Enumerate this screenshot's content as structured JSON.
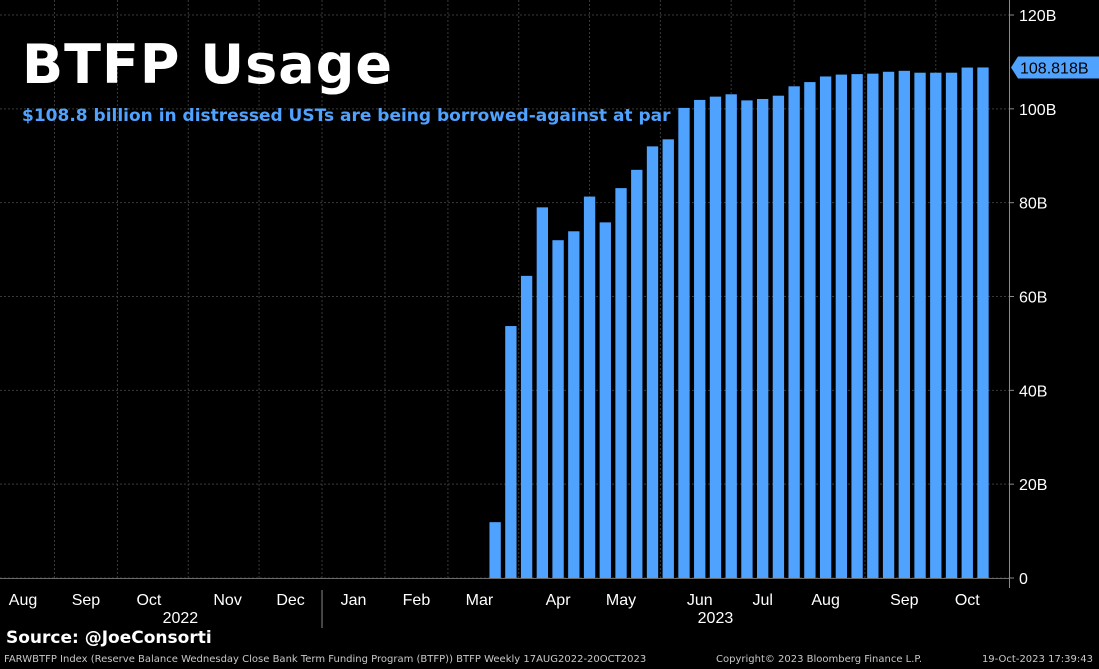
{
  "title": "BTFP Usage",
  "subtitle": "$108.8 billion in distressed USTs are being borrowed-against at par",
  "source": "Source:  @JoeConsorti",
  "footer": {
    "left": "FARWBTFP Index (Reserve Balance Wednesday Close Bank Term Funding Program (BTFP)) BTFP  Weekly 17AUG2022-20OCT2023",
    "center": "Copyright© 2023 Bloomberg Finance L.P.",
    "right": "19-Oct-2023 17:39:43"
  },
  "colors": {
    "background": "#000000",
    "bar": "#4fa3ff",
    "grid": "#3a3a3a",
    "axis_text": "#ffffff",
    "last_value_badge": "#4fa3ff"
  },
  "chart_data": {
    "type": "bar",
    "series": [
      {
        "values": [
          0,
          0,
          0,
          0,
          0,
          0,
          0,
          0,
          0,
          0,
          0,
          0,
          0,
          0,
          0,
          0,
          0,
          0,
          0,
          0,
          0,
          0,
          0,
          0,
          0,
          0,
          0,
          0,
          0,
          0,
          11.9,
          53.7,
          64.4,
          79.0,
          72.0,
          73.9,
          81.3,
          75.8,
          83.1,
          87.0,
          92.0,
          93.5,
          100.2,
          101.9,
          102.6,
          103.1,
          101.8,
          102.1,
          102.8,
          104.8,
          105.7,
          106.9,
          107.3,
          107.4,
          107.5,
          107.9,
          108.1,
          107.7,
          107.7,
          107.7,
          108.8,
          108.818
        ]
      }
    ],
    "x_start": "2022-08-17",
    "x_interval": "weekly",
    "x_end": "2023-10-18",
    "xtick_labels": [
      {
        "label": "Aug",
        "date": "2022-08-17"
      },
      {
        "label": "Sep",
        "date": "2022-09-14"
      },
      {
        "label": "Oct",
        "date": "2022-10-12"
      },
      {
        "label": "Nov",
        "date": "2022-11-16"
      },
      {
        "label": "Dec",
        "date": "2022-12-14"
      },
      {
        "label": "Jan",
        "date": "2023-01-11"
      },
      {
        "label": "Feb",
        "date": "2023-02-08"
      },
      {
        "label": "Mar",
        "date": "2023-03-08"
      },
      {
        "label": "Apr",
        "date": "2023-04-12"
      },
      {
        "label": "May",
        "date": "2023-05-10"
      },
      {
        "label": "Jun",
        "date": "2023-06-14"
      },
      {
        "label": "Jul",
        "date": "2023-07-12"
      },
      {
        "label": "Aug",
        "date": "2023-08-09"
      },
      {
        "label": "Sep",
        "date": "2023-09-13"
      },
      {
        "label": "Oct",
        "date": "2023-10-11"
      }
    ],
    "year_labels": [
      {
        "label": "2022",
        "date": "2022-10-26"
      },
      {
        "label": "2023",
        "date": "2023-06-21"
      }
    ],
    "ylim": [
      0,
      120
    ],
    "yticks": [
      0,
      20,
      40,
      60,
      80,
      100,
      120
    ],
    "ytick_labels": [
      "0",
      "20B",
      "40B",
      "60B",
      "80B",
      "100B",
      "120B"
    ],
    "last_value": 108.818,
    "last_value_label": "108.818B",
    "grid": "horizontal-and-vertical-dashed",
    "y_axis_position": "right"
  }
}
